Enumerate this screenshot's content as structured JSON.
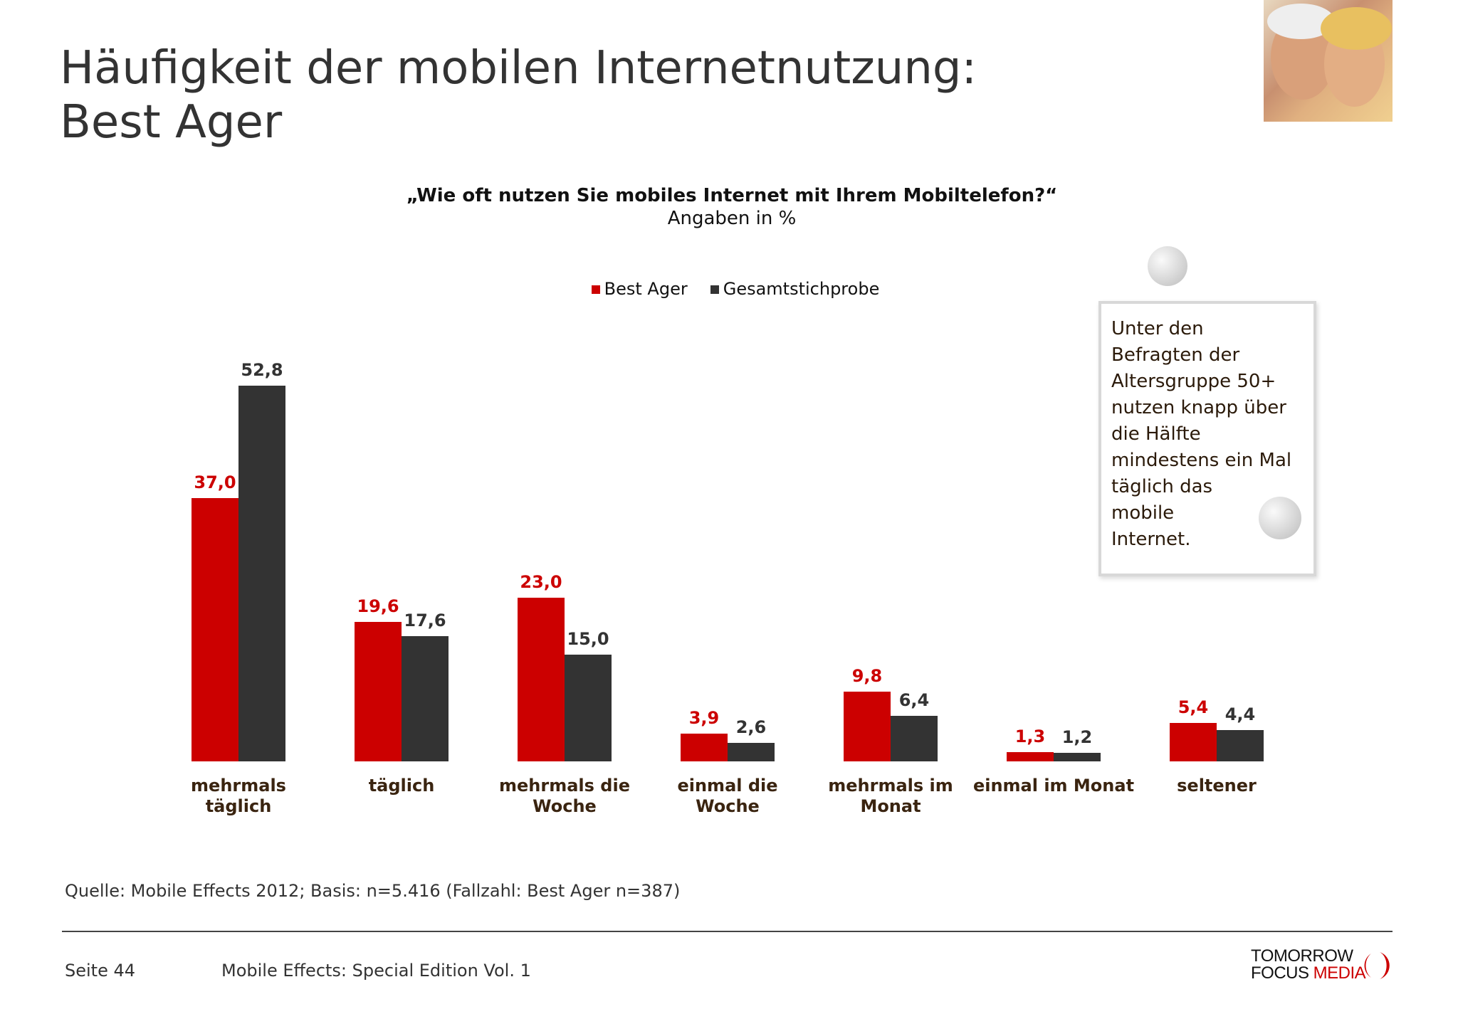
{
  "title_line1": "Häufigkeit der mobilen Internetnutzung:",
  "title_line2": "Best Ager",
  "chart_data": {
    "type": "bar",
    "title": "„Wie oft nutzen Sie mobiles Internet mit Ihrem Mobiltelefon?“",
    "subtitle": "Angaben in %",
    "categories": [
      "mehrmals täglich",
      "täglich",
      "mehrmals die Woche",
      "einmal die Woche",
      "mehrmals im Monat",
      "einmal im Monat",
      "seltener"
    ],
    "category_lines": [
      [
        "mehrmals",
        "täglich"
      ],
      [
        "täglich"
      ],
      [
        "mehrmals die",
        "Woche"
      ],
      [
        "einmal die",
        "Woche"
      ],
      [
        "mehrmals im",
        "Monat"
      ],
      [
        "einmal im Monat"
      ],
      [
        "seltener"
      ]
    ],
    "series": [
      {
        "name": "Best Ager",
        "color": "#cc0000",
        "values": [
          37.0,
          19.6,
          23.0,
          3.9,
          9.8,
          1.3,
          5.4
        ],
        "labels": [
          "37,0",
          "19,6",
          "23,0",
          "3,9",
          "9,8",
          "1,3",
          "5,4"
        ]
      },
      {
        "name": "Gesamtstichprobe",
        "color": "#333333",
        "values": [
          52.8,
          17.6,
          15.0,
          2.6,
          6.4,
          1.2,
          4.4
        ],
        "labels": [
          "52,8",
          "17,6",
          "15,0",
          "2,6",
          "6,4",
          "1,2",
          "4,4"
        ]
      }
    ],
    "legend": "top-center",
    "grid": false
  },
  "note_lines": [
    "Unter den",
    "Befragten der",
    "Altersgruppe 50+",
    "nutzen knapp über",
    "die Hälfte",
    "mindestens ein Mal",
    "täglich das",
    "mobile",
    "Internet."
  ],
  "source": "Quelle: Mobile Effects 2012; Basis: n=5.416 (Fallzahl: Best Ager n=387)",
  "footer": {
    "page": "Seite 44",
    "publication": "Mobile Effects: Special Edition Vol. 1"
  },
  "logo": {
    "line1": "TOMORROW",
    "line2a": "FOCUS",
    "line2b": "MEDIA"
  }
}
